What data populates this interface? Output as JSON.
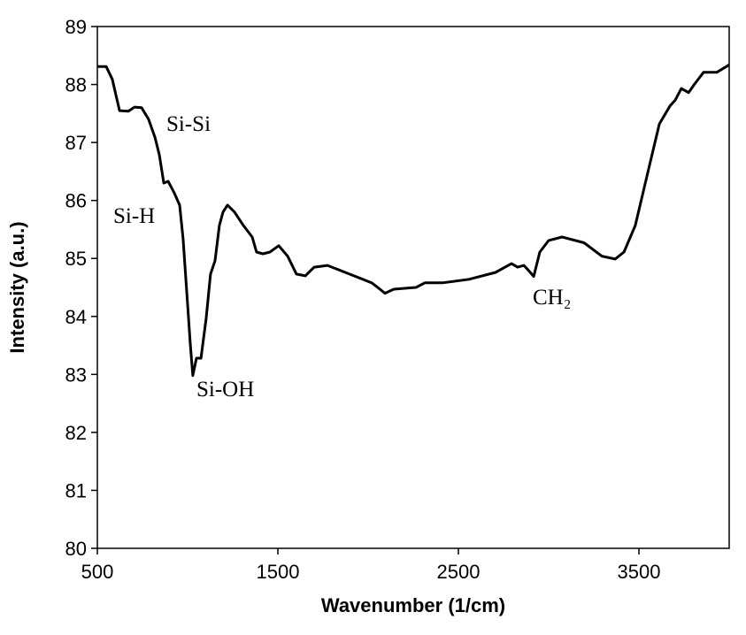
{
  "chart_data": {
    "type": "line",
    "x_label": "Wavenumber (1/cm)",
    "y_label": "Intensity (a.u.)",
    "color": "#000000",
    "x": [
      500,
      549,
      583,
      623,
      672,
      706,
      745,
      784,
      819,
      843,
      868,
      892,
      926,
      956,
      975,
      995,
      1015,
      1029,
      1049,
      1074,
      1103,
      1127,
      1152,
      1176,
      1196,
      1221,
      1260,
      1309,
      1358,
      1382,
      1417,
      1456,
      1505,
      1554,
      1603,
      1652,
      1701,
      1775,
      1873,
      2020,
      2069,
      2093,
      2142,
      2216,
      2265,
      2314,
      2412,
      2559,
      2706,
      2794,
      2828,
      2863,
      2892,
      2917,
      2951,
      3000,
      3074,
      3196,
      3294,
      3368,
      3417,
      3480,
      3549,
      3613,
      3672,
      3701,
      3735,
      3775,
      3809,
      3858,
      3931,
      4000
    ],
    "values": [
      88.31,
      88.31,
      88.09,
      87.55,
      87.54,
      87.61,
      87.6,
      87.4,
      87.09,
      86.79,
      86.3,
      86.33,
      86.13,
      85.92,
      85.34,
      84.43,
      83.51,
      82.98,
      83.28,
      83.28,
      83.97,
      84.73,
      84.96,
      85.57,
      85.8,
      85.92,
      85.8,
      85.57,
      85.37,
      85.11,
      85.08,
      85.11,
      85.22,
      85.04,
      84.73,
      84.7,
      84.85,
      84.88,
      84.76,
      84.58,
      84.46,
      84.4,
      84.47,
      84.49,
      84.5,
      84.58,
      84.58,
      84.64,
      84.76,
      84.91,
      84.85,
      84.88,
      84.78,
      84.69,
      85.11,
      85.31,
      85.37,
      85.27,
      85.04,
      84.99,
      85.11,
      85.57,
      86.48,
      87.32,
      87.63,
      87.73,
      87.93,
      87.86,
      88.01,
      88.21,
      88.21,
      88.34
    ],
    "xlim": [
      500,
      4000
    ],
    "xticks": [
      500,
      1500,
      2500,
      3500
    ],
    "ylim": [
      80,
      89
    ],
    "yticks": [
      80,
      81,
      82,
      83,
      84,
      85,
      86,
      87,
      88,
      89
    ],
    "grid": false,
    "annotations": [
      "Si-Si",
      "Si-H",
      "Si-OH",
      "CH₂"
    ]
  }
}
